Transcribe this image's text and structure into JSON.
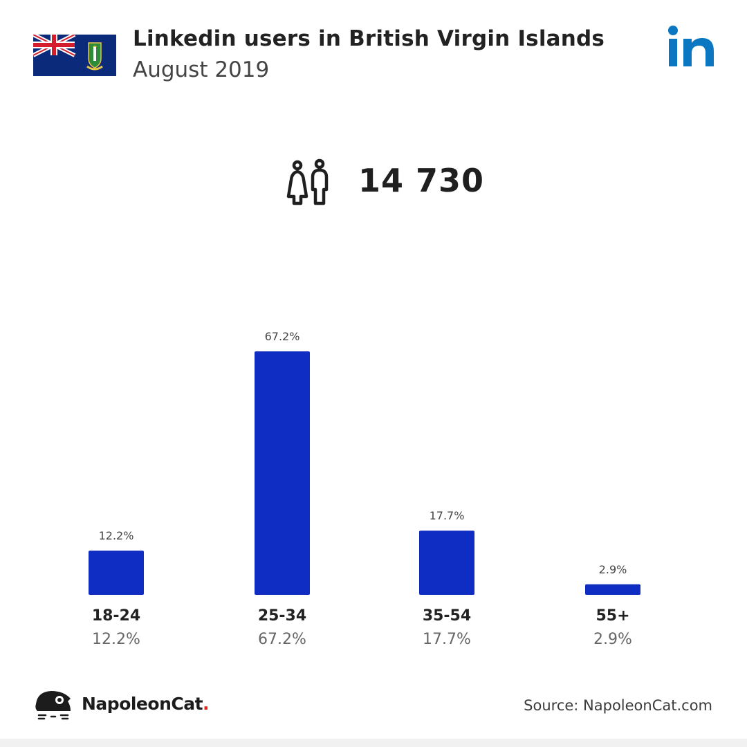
{
  "header": {
    "title": "Linkedin users in British Virgin Islands",
    "subtitle": "August 2019"
  },
  "icons": {
    "flag": "british-virgin-islands-flag-icon",
    "brand": "linkedin-logo-icon",
    "people": "people-icon",
    "footer_logo": "napoleoncat-logo-icon"
  },
  "total_users": "14 730",
  "colors": {
    "bar": "#0f2cc3",
    "linkedin": "#0a77c0",
    "brand_dot": "#e2231a"
  },
  "chart_data": {
    "type": "bar",
    "categories": [
      "18-24",
      "25-34",
      "35-54",
      "55+"
    ],
    "values": [
      12.2,
      67.2,
      17.7,
      2.9
    ],
    "value_labels": [
      "12.2%",
      "67.2%",
      "17.7%",
      "2.9%"
    ],
    "unit": "%",
    "ylim": [
      0,
      70
    ],
    "grid": false,
    "legend": "none"
  },
  "footer": {
    "brand_name": "NapoleonCat",
    "brand_dot": ".",
    "source": "Source: NapoleonCat.com"
  }
}
